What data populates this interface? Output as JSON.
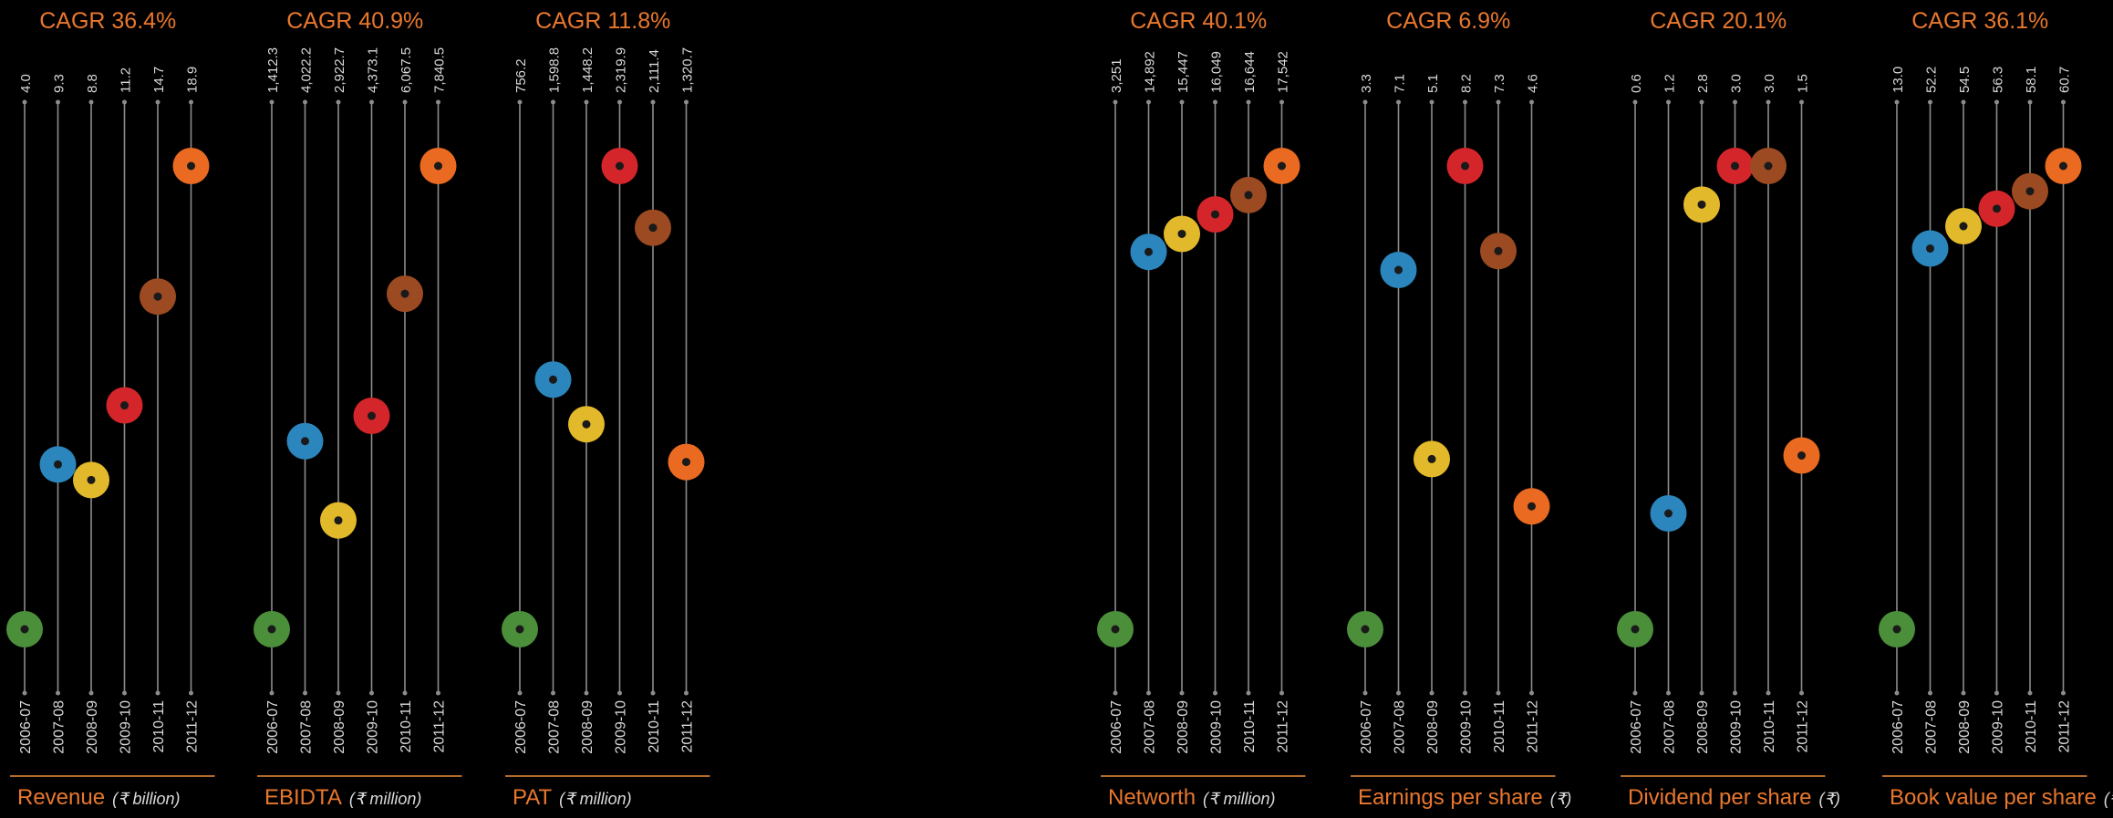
{
  "years": [
    "2006-07",
    "2007-08",
    "2008-09",
    "2009-10",
    "2010-11",
    "2011-12"
  ],
  "colors": {
    "orange_text": "#e8772e",
    "line": "#8c8c8c",
    "text": "#d9d9d9",
    "dots": [
      "#4b8f3b",
      "#2b86bd",
      "#e2b92a",
      "#d4262a",
      "#9b4a22",
      "#ea6a22"
    ],
    "center": "#1a1a1a"
  },
  "chart_data": [
    {
      "type": "scatter",
      "cagr": "CAGR 36.4%",
      "metric": "Revenue",
      "unit": "(₹ billion)",
      "labels": [
        "4.0",
        "9.3",
        "8.8",
        "11.2",
        "14.7",
        "18.9"
      ],
      "values": [
        4.0,
        9.3,
        8.8,
        11.2,
        14.7,
        18.9
      ]
    },
    {
      "type": "scatter",
      "cagr": "CAGR 40.9%",
      "metric": "EBIDTA",
      "unit": "(₹ million)",
      "labels": [
        "1,412.3",
        "4,022.2",
        "2,922.7",
        "4,373.1",
        "6,067.5",
        "7,840.5"
      ],
      "values": [
        1412.3,
        4022.2,
        2922.7,
        4373.1,
        6067.5,
        7840.5
      ]
    },
    {
      "type": "scatter",
      "cagr": "CAGR 11.8%",
      "metric": "PAT",
      "unit": "(₹ million)",
      "labels": [
        "756.2",
        "1,598.8",
        "1,448.2",
        "2,319.9",
        "2,111.4",
        "1,320.7"
      ],
      "values": [
        756.2,
        1598.8,
        1448.2,
        2319.9,
        2111.4,
        1320.7
      ]
    },
    {
      "type": "scatter",
      "cagr": "CAGR 40.1%",
      "metric": "Networth",
      "unit": "(₹ million)",
      "labels": [
        "3,251",
        "14,892",
        "15,447",
        "16,049",
        "16,644",
        "17,542"
      ],
      "values": [
        3251,
        14892,
        15447,
        16049,
        16644,
        17542
      ]
    },
    {
      "type": "scatter",
      "cagr": "CAGR 6.9%",
      "metric": "Earnings per share",
      "unit": "(₹)",
      "labels": [
        "3.3",
        "7.1",
        "5.1",
        "8.2",
        "7.3",
        "4.6"
      ],
      "values": [
        3.3,
        7.1,
        5.1,
        8.2,
        7.3,
        4.6
      ]
    },
    {
      "type": "scatter",
      "cagr": "CAGR 20.1%",
      "metric": "Dividend per share",
      "unit": "(₹)",
      "labels": [
        "0.6",
        "1.2",
        "2.8",
        "3.0",
        "3.0",
        "1.5"
      ],
      "values": [
        0.6,
        1.2,
        2.8,
        3.0,
        3.0,
        1.5
      ]
    },
    {
      "type": "scatter",
      "cagr": "CAGR 36.1%",
      "metric": "Book value per share",
      "unit": "(₹)",
      "labels": [
        "13.0",
        "52.2",
        "54.5",
        "56.3",
        "58.1",
        "60.7"
      ],
      "values": [
        13.0,
        52.2,
        54.5,
        56.3,
        58.1,
        60.7
      ]
    }
  ]
}
